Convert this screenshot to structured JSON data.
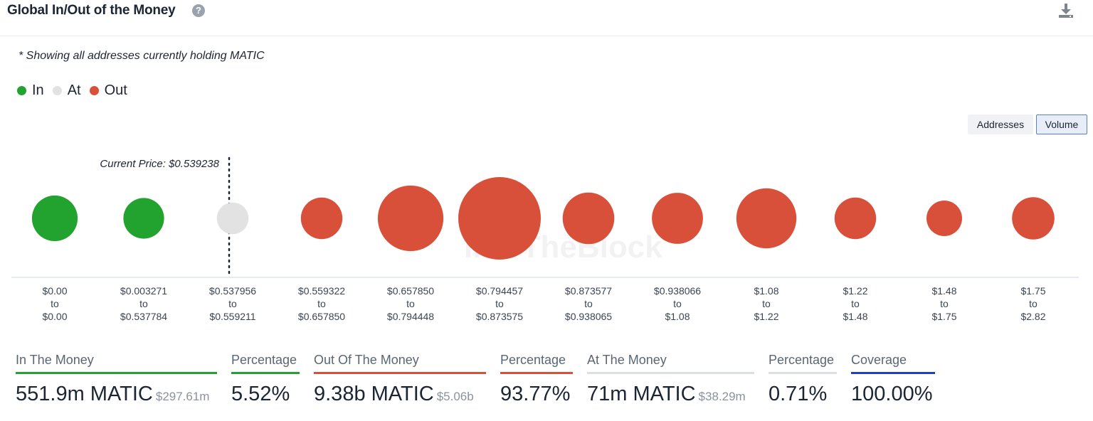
{
  "header": {
    "title": "Global In/Out of the Money",
    "help_icon": "?",
    "download_icon": "download-icon"
  },
  "note": "* Showing all addresses currently holding MATIC",
  "legend": [
    {
      "label": "In",
      "color": "#22a22e"
    },
    {
      "label": "At",
      "color": "#e2e2e2"
    },
    {
      "label": "Out",
      "color": "#d9503a"
    }
  ],
  "toggle": {
    "addresses_label": "Addresses",
    "volume_label": "Volume",
    "selected": "Volume"
  },
  "chart_data": {
    "type": "bubble",
    "current_price_label": "Current Price: $0.539238",
    "current_price_bucket_index": 2,
    "watermark": "IntoTheBlock",
    "buckets": [
      {
        "from": "$0.00",
        "to": "$0.00",
        "status": "In",
        "relative_volume": 0.19
      },
      {
        "from": "$0.003271",
        "to": "$0.537784",
        "status": "In",
        "relative_volume": 0.13
      },
      {
        "from": "$0.537956",
        "to": "$0.559211",
        "status": "At",
        "relative_volume": 0.05
      },
      {
        "from": "$0.559322",
        "to": "$0.657850",
        "status": "Out",
        "relative_volume": 0.14
      },
      {
        "from": "$0.657850",
        "to": "$0.794448",
        "status": "Out",
        "relative_volume": 0.55
      },
      {
        "from": "$0.794457",
        "to": "$0.873575",
        "status": "Out",
        "relative_volume": 1.0
      },
      {
        "from": "$0.873577",
        "to": "$0.938065",
        "status": "Out",
        "relative_volume": 0.28
      },
      {
        "from": "$0.938066",
        "to": "$1.08",
        "status": "Out",
        "relative_volume": 0.27
      },
      {
        "from": "$1.08",
        "to": "$1.22",
        "status": "Out",
        "relative_volume": 0.43
      },
      {
        "from": "$1.22",
        "to": "$1.48",
        "status": "Out",
        "relative_volume": 0.14
      },
      {
        "from": "$1.48",
        "to": "$1.75",
        "status": "Out",
        "relative_volume": 0.08
      },
      {
        "from": "$1.75",
        "to": "$2.82",
        "status": "Out",
        "relative_volume": 0.15
      }
    ],
    "to_word": "to"
  },
  "stats": [
    {
      "label": "In The Money",
      "value": "551.9m MATIC",
      "sub": "$297.61m",
      "color": "#22a22e"
    },
    {
      "label": "Percentage",
      "value": "5.52%",
      "sub": "",
      "color": "#22a22e"
    },
    {
      "label": "Out Of The Money",
      "value": "9.38b MATIC",
      "sub": "$5.06b",
      "color": "#d9503a"
    },
    {
      "label": "Percentage",
      "value": "93.77%",
      "sub": "",
      "color": "#d9503a"
    },
    {
      "label": "At The Money",
      "value": "71m MATIC",
      "sub": "$38.29m",
      "color": "#dcdfe3"
    },
    {
      "label": "Percentage",
      "value": "0.71%",
      "sub": "",
      "color": "#dcdfe3"
    },
    {
      "label": "Coverage",
      "value": "100.00%",
      "sub": "",
      "color": "#1f3fc4"
    }
  ]
}
